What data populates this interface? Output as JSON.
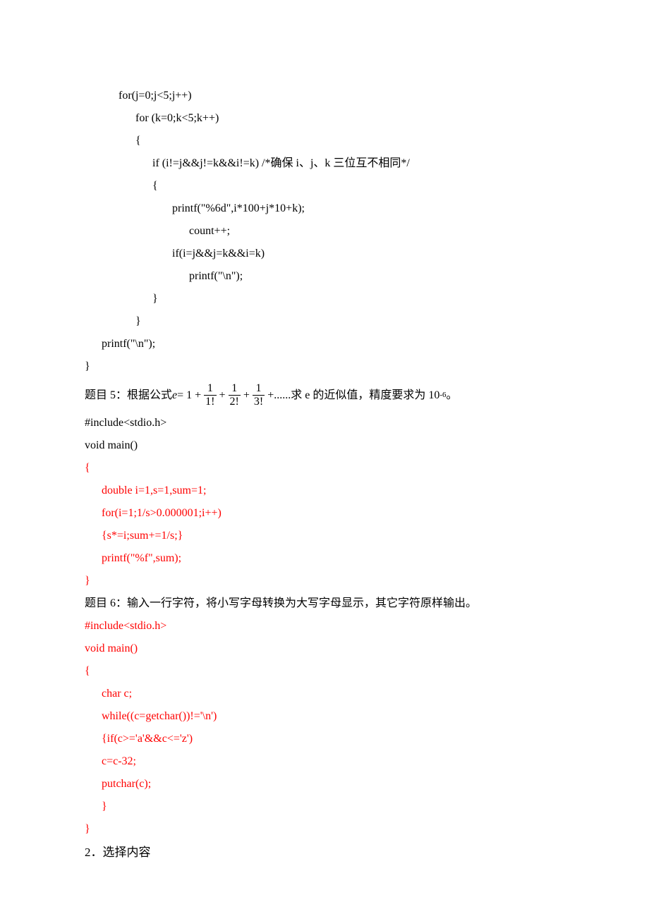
{
  "topcode": {
    "l1": "            for(j=0;j<5;j++)",
    "l2": "                  for (k=0;k<5;k++)",
    "l3": "                  {",
    "l4": "                        if (i!=j&&j!=k&&i!=k) /*确保 i、j、k 三位互不相同*/",
    "l5": "                        {",
    "l6": "                               printf(\"%6d\",i*100+j*10+k);",
    "l7": "                                     count++;",
    "l8": "                               if(i=j&&j=k&&i=k)",
    "l9": "                                     printf(\"\\n\");",
    "l10": "                        }",
    "l11": "                  }",
    "l12": "      printf(\"\\n\");",
    "l13": "}"
  },
  "q5": {
    "prefix": "题目 5：根据公式  ",
    "e_eq": "e",
    "eq_part": " = 1 + ",
    "plus": " + ",
    "dots": " ......    ",
    "suffix_a": "求 e 的近似值，精度要求为 10",
    "suffix_exp": "-6",
    "suffix_b": "。",
    "f1n": "1",
    "f1d": "1!",
    "f2n": "1",
    "f2d": "2!",
    "f3n": "1",
    "f3d": "3!"
  },
  "code5": {
    "l1": "#include<stdio.h>",
    "l2": "void main()",
    "l3": "{",
    "l4": "      double i=1,s=1,sum=1;",
    "l5": "      for(i=1;1/s>0.000001;i++)",
    "l6": "      {s*=i;sum+=1/s;}",
    "l7": "      printf(\"%f\",sum);",
    "l8": "}"
  },
  "q6": "题目 6：输入一行字符，将小写字母转换为大写字母显示，其它字符原样输出。",
  "code6": {
    "l1": "#include<stdio.h>",
    "l2": "void main()",
    "l3": "{",
    "l4": "      char c;",
    "l5": "      while((c=getchar())!='\\n')",
    "l6": "      {if(c>='a'&&c<='z')",
    "l7": "      c=c-32;",
    "l8": "      putchar(c);",
    "l9": "      }",
    "l10": "}"
  },
  "section2": "2．选择内容",
  "colors": {
    "red": "#ff0000",
    "black": "#000000",
    "bg": "#ffffff"
  }
}
